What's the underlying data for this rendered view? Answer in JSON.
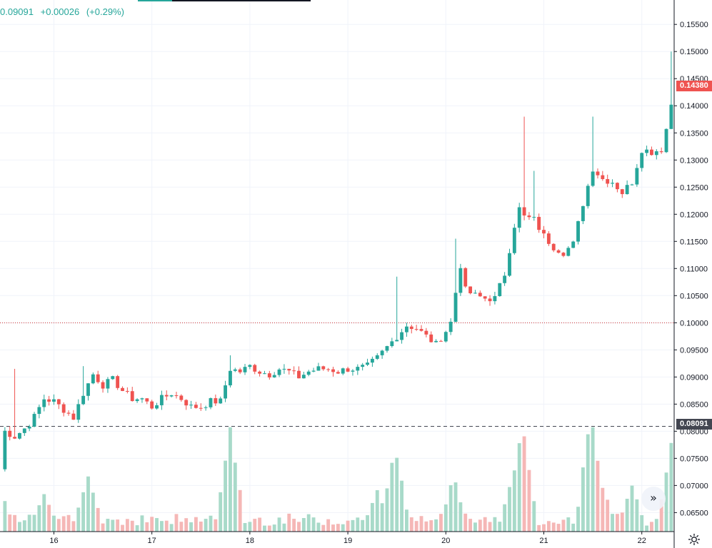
{
  "legend": {
    "close": "0.09091",
    "change": "+0.00026",
    "change_pct": "(+0.29%)"
  },
  "badges": {
    "last_price": "0.14380",
    "ref_price": "0.08091"
  },
  "icons": {
    "scroll_button": "double-chevron-right-icon",
    "settings": "gear-icon"
  },
  "scroll_glyph": "»",
  "colors": {
    "up": "#26a69a",
    "down": "#ef5350",
    "up_volume": "#a8dac9",
    "down_volume": "#f5b7b6",
    "ref_line": "#434651",
    "marker_line": "#d32f2f"
  },
  "chart_data": {
    "type": "candlestick",
    "y_axis": {
      "range": [
        0.0615,
        0.1595
      ],
      "ticks": [
        "0.06500",
        "0.07000",
        "0.07500",
        "0.08000",
        "0.08500",
        "0.09000",
        "0.09500",
        "0.10000",
        "0.10500",
        "0.11000",
        "0.11500",
        "0.12000",
        "0.12500",
        "0.13000",
        "0.13500",
        "0.14000",
        "0.14500",
        "0.15000",
        "0.15500"
      ]
    },
    "x_axis": {
      "range": [
        15.45,
        22.33
      ],
      "ticks": [
        {
          "label": "16",
          "value": 16
        },
        {
          "label": "17",
          "value": 17
        },
        {
          "label": "18",
          "value": 18
        },
        {
          "label": "19",
          "value": 19
        },
        {
          "label": "20",
          "value": 20
        },
        {
          "label": "21",
          "value": 21
        },
        {
          "label": "22",
          "value": 22
        }
      ]
    },
    "horizontal_lines": [
      {
        "value": 0.1,
        "style": "dotted"
      },
      {
        "value": 0.08091,
        "style": "dashed"
      }
    ],
    "last_price": 0.1438,
    "anchors": [
      {
        "t": 15.45,
        "p": 0.073
      },
      {
        "t": 15.5,
        "p": 0.08
      },
      {
        "t": 15.55,
        "p": 0.0795
      },
      {
        "t": 15.6,
        "p": 0.079
      },
      {
        "t": 15.7,
        "p": 0.0805
      },
      {
        "t": 15.78,
        "p": 0.082
      },
      {
        "t": 15.9,
        "p": 0.086
      },
      {
        "t": 16.0,
        "p": 0.0855
      },
      {
        "t": 16.1,
        "p": 0.084
      },
      {
        "t": 16.2,
        "p": 0.0825
      },
      {
        "t": 16.3,
        "p": 0.087
      },
      {
        "t": 16.4,
        "p": 0.0905
      },
      {
        "t": 16.5,
        "p": 0.0885
      },
      {
        "t": 16.6,
        "p": 0.0895
      },
      {
        "t": 16.7,
        "p": 0.0875
      },
      {
        "t": 16.8,
        "p": 0.086
      },
      {
        "t": 16.9,
        "p": 0.086
      },
      {
        "t": 17.0,
        "p": 0.0845
      },
      {
        "t": 17.1,
        "p": 0.086
      },
      {
        "t": 17.2,
        "p": 0.087
      },
      {
        "t": 17.3,
        "p": 0.086
      },
      {
        "t": 17.4,
        "p": 0.0845
      },
      {
        "t": 17.5,
        "p": 0.0845
      },
      {
        "t": 17.6,
        "p": 0.0855
      },
      {
        "t": 17.7,
        "p": 0.0855
      },
      {
        "t": 17.8,
        "p": 0.0915
      },
      {
        "t": 17.9,
        "p": 0.091
      },
      {
        "t": 18.0,
        "p": 0.092
      },
      {
        "t": 18.1,
        "p": 0.091
      },
      {
        "t": 18.2,
        "p": 0.0905
      },
      {
        "t": 18.3,
        "p": 0.0915
      },
      {
        "t": 18.4,
        "p": 0.091
      },
      {
        "t": 18.5,
        "p": 0.09
      },
      {
        "t": 18.6,
        "p": 0.091
      },
      {
        "t": 18.7,
        "p": 0.0915
      },
      {
        "t": 18.8,
        "p": 0.0915
      },
      {
        "t": 18.9,
        "p": 0.091
      },
      {
        "t": 19.0,
        "p": 0.0915
      },
      {
        "t": 19.1,
        "p": 0.0915
      },
      {
        "t": 19.2,
        "p": 0.092
      },
      {
        "t": 19.3,
        "p": 0.0935
      },
      {
        "t": 19.4,
        "p": 0.0955
      },
      {
        "t": 19.5,
        "p": 0.0975
      },
      {
        "t": 19.6,
        "p": 0.0995
      },
      {
        "t": 19.7,
        "p": 0.099
      },
      {
        "t": 19.8,
        "p": 0.0975
      },
      {
        "t": 19.9,
        "p": 0.096
      },
      {
        "t": 20.0,
        "p": 0.0985
      },
      {
        "t": 20.08,
        "p": 0.101
      },
      {
        "t": 20.13,
        "p": 0.1125
      },
      {
        "t": 20.2,
        "p": 0.106
      },
      {
        "t": 20.3,
        "p": 0.105
      },
      {
        "t": 20.4,
        "p": 0.1045
      },
      {
        "t": 20.5,
        "p": 0.1045
      },
      {
        "t": 20.6,
        "p": 0.109
      },
      {
        "t": 20.7,
        "p": 0.118
      },
      {
        "t": 20.75,
        "p": 0.121
      },
      {
        "t": 20.8,
        "p": 0.1195
      },
      {
        "t": 20.9,
        "p": 0.119
      },
      {
        "t": 21.0,
        "p": 0.116
      },
      {
        "t": 21.1,
        "p": 0.114
      },
      {
        "t": 21.2,
        "p": 0.113
      },
      {
        "t": 21.3,
        "p": 0.1145
      },
      {
        "t": 21.4,
        "p": 0.122
      },
      {
        "t": 21.5,
        "p": 0.1285
      },
      {
        "t": 21.6,
        "p": 0.1265
      },
      {
        "t": 21.7,
        "p": 0.126
      },
      {
        "t": 21.8,
        "p": 0.124
      },
      {
        "t": 21.9,
        "p": 0.126
      },
      {
        "t": 22.0,
        "p": 0.132
      },
      {
        "t": 22.1,
        "p": 0.1315
      },
      {
        "t": 22.2,
        "p": 0.132
      },
      {
        "t": 22.28,
        "p": 0.138
      },
      {
        "t": 22.33,
        "p": 0.1438
      }
    ],
    "spikes": [
      {
        "t": 15.58,
        "high": 0.0915
      },
      {
        "t": 16.3,
        "high": 0.092
      },
      {
        "t": 17.8,
        "high": 0.094
      },
      {
        "t": 19.48,
        "high": 0.1085
      },
      {
        "t": 20.11,
        "high": 0.1155
      },
      {
        "t": 20.78,
        "high": 0.138
      },
      {
        "t": 20.92,
        "high": 0.128
      },
      {
        "t": 21.48,
        "high": 0.138
      },
      {
        "t": 22.31,
        "high": 0.15
      }
    ],
    "volume_peaks": [
      {
        "t": 15.45,
        "v": 0.42
      },
      {
        "t": 15.9,
        "v": 0.35
      },
      {
        "t": 16.35,
        "v": 0.55
      },
      {
        "t": 17.8,
        "v": 1.0
      },
      {
        "t": 19.3,
        "v": 0.38
      },
      {
        "t": 19.48,
        "v": 0.82
      },
      {
        "t": 20.08,
        "v": 0.52
      },
      {
        "t": 20.7,
        "v": 0.6
      },
      {
        "t": 20.78,
        "v": 1.07
      },
      {
        "t": 21.48,
        "v": 1.19
      },
      {
        "t": 21.6,
        "v": 0.4
      },
      {
        "t": 21.9,
        "v": 0.42
      },
      {
        "t": 22.3,
        "v": 0.84
      }
    ]
  }
}
